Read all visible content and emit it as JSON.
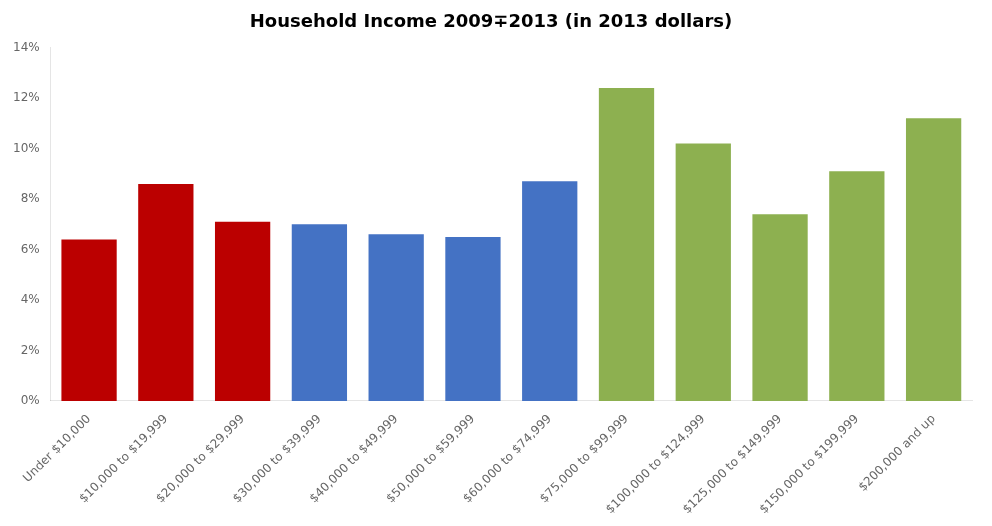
{
  "chart_data": {
    "type": "bar",
    "title": "Household Income 2009∓2013 (in 2013 dollars)",
    "categories": [
      "Under $10,000",
      "$10,000 to $19,999",
      "$20,000 to $29,999",
      "$30,000 to $39,999",
      "$40,000 to $49,999",
      "$50,000 to $59,999",
      "$60,000 to $74,999",
      "$75,000 to $99,999",
      "$100,000 to $124,999",
      "$125,000 to $149,999",
      "$150,000 to $199,999",
      "$200,000 and up"
    ],
    "values": [
      6.4,
      8.6,
      7.1,
      7.0,
      6.6,
      6.5,
      8.7,
      12.4,
      10.2,
      7.4,
      9.1,
      11.2
    ],
    "colors": [
      "#BB0000",
      "#BB0000",
      "#BB0000",
      "#4472C4",
      "#4472C4",
      "#4472C4",
      "#4472C4",
      "#8DB050",
      "#8DB050",
      "#8DB050",
      "#8DB050",
      "#8DB050"
    ],
    "ylim": [
      0,
      14
    ],
    "yticks": [
      {
        "value": 0,
        "label": "0%"
      },
      {
        "value": 2,
        "label": "2%"
      },
      {
        "value": 4,
        "label": "4%"
      },
      {
        "value": 6,
        "label": "6%"
      },
      {
        "value": 8,
        "label": "8%"
      },
      {
        "value": 10,
        "label": "10%"
      },
      {
        "value": 12,
        "label": "12%"
      },
      {
        "value": 14,
        "label": "14%"
      }
    ],
    "grid": false
  }
}
